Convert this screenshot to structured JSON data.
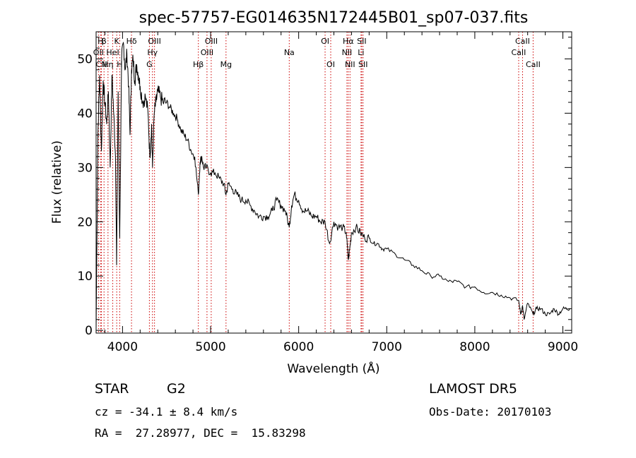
{
  "chart_data": {
    "type": "line",
    "title": "spec-57757-EG014635N172445B01_sp07-037.fits",
    "xlabel": "Wavelength (Å)",
    "ylabel": "Flux (relative)",
    "xlim": [
      3700,
      9100
    ],
    "ylim": [
      -0.5,
      55
    ],
    "xticks": [
      4000,
      5000,
      6000,
      7000,
      8000,
      9000
    ],
    "yticks": [
      0,
      10,
      20,
      30,
      40,
      50
    ],
    "grid": false,
    "legend": "none",
    "line_color": "#000000",
    "marker_color": "#cc0000",
    "series": [
      {
        "x": [
          3700,
          3720,
          3740,
          3760,
          3780,
          3800,
          3820,
          3840,
          3860,
          3880,
          3900,
          3920,
          3933,
          3950,
          3968,
          3990,
          4010,
          4030,
          4050,
          4070,
          4085,
          4102,
          4120,
          4140,
          4160,
          4180,
          4200,
          4230,
          4260,
          4290,
          4310,
          4330,
          4340,
          4360,
          4380,
          4400,
          4430,
          4460,
          4500,
          4540,
          4580,
          4620,
          4660,
          4700,
          4740,
          4780,
          4820,
          4861,
          4880,
          4900,
          4920,
          4950,
          5000,
          5050,
          5100,
          5150,
          5175,
          5200,
          5250,
          5300,
          5350,
          5400,
          5450,
          5500,
          5550,
          5600,
          5650,
          5700,
          5750,
          5800,
          5850,
          5893,
          5920,
          5950,
          6000,
          6050,
          6100,
          6150,
          6200,
          6250,
          6300,
          6350,
          6400,
          6450,
          6500,
          6540,
          6563,
          6580,
          6600,
          6650,
          6700,
          6750,
          6800,
          6850,
          6900,
          6950,
          7000,
          7100,
          7200,
          7300,
          7400,
          7500,
          7600,
          7700,
          7800,
          7900,
          8000,
          8100,
          8200,
          8300,
          8400,
          8498,
          8520,
          8542,
          8560,
          8600,
          8662,
          8700,
          8750,
          8800,
          8850,
          8900,
          8950,
          9000,
          9050,
          9080
        ],
        "y": [
          0,
          36,
          47,
          33,
          46,
          42,
          38,
          44,
          30,
          47,
          40,
          32,
          12,
          44,
          17,
          50,
          53,
          48,
          51,
          45,
          36,
          48,
          50,
          46,
          49,
          47,
          45,
          42,
          43,
          40,
          32,
          38,
          30,
          40,
          42,
          44,
          43,
          42,
          42,
          41,
          40,
          39,
          37,
          36,
          35,
          33,
          32,
          25,
          31,
          32,
          30,
          30,
          29,
          29,
          28,
          27,
          25,
          27,
          26,
          25,
          24,
          24,
          23,
          22,
          21,
          21,
          21,
          22,
          24,
          23,
          22,
          19,
          23,
          25,
          24,
          22,
          22,
          21,
          21,
          20,
          20,
          16,
          20,
          19,
          19,
          18,
          13,
          15,
          18,
          19,
          18,
          17,
          17,
          16,
          16,
          15,
          15,
          14,
          13,
          12,
          11,
          10,
          10,
          9,
          9,
          8,
          8,
          7,
          7,
          6.5,
          6,
          5.5,
          3,
          4.5,
          2,
          5,
          3,
          4,
          4,
          3,
          3,
          4,
          3,
          4,
          4,
          4
        ]
      }
    ],
    "lines": [
      {
        "label": "H",
        "x": 3750,
        "row": 1
      },
      {
        "label": "β",
        "x": 3790,
        "row": 1
      },
      {
        "label": "OII",
        "x": 3727,
        "row": 2
      },
      {
        "label": "CN",
        "x": 3760,
        "row": 3
      },
      {
        "label": "Hη",
        "x": 3835,
        "row": 3
      },
      {
        "label": "HeI",
        "x": 3889,
        "row": 2
      },
      {
        "label": "K",
        "x": 3934,
        "row": 1
      },
      {
        "label": "H",
        "x": 3968,
        "row": 3
      },
      {
        "label": "Hδ",
        "x": 4102,
        "row": 1
      },
      {
        "label": "OIII",
        "x": 4363,
        "row": 1
      },
      {
        "label": "Hγ",
        "x": 4340,
        "row": 2
      },
      {
        "label": "G",
        "x": 4305,
        "row": 3
      },
      {
        "label": "Hβ",
        "x": 4861,
        "row": 3
      },
      {
        "label": "OIII",
        "x": 5007,
        "row": 1
      },
      {
        "label": "OIII",
        "x": 4959,
        "row": 2
      },
      {
        "label": "Mg",
        "x": 5175,
        "row": 3
      },
      {
        "label": "Na",
        "x": 5893,
        "row": 2
      },
      {
        "label": "OI",
        "x": 6300,
        "row": 1
      },
      {
        "label": "OI",
        "x": 6364,
        "row": 3
      },
      {
        "label": "Hα",
        "x": 6563,
        "row": 1
      },
      {
        "label": "NII",
        "x": 6548,
        "row": 2
      },
      {
        "label": "NII",
        "x": 6583,
        "row": 3
      },
      {
        "label": "SII",
        "x": 6716,
        "row": 1
      },
      {
        "label": "Li",
        "x": 6708,
        "row": 2
      },
      {
        "label": "SII",
        "x": 6731,
        "row": 3
      },
      {
        "label": "CaII",
        "x": 8542,
        "row": 1
      },
      {
        "label": "CaII",
        "x": 8498,
        "row": 2
      },
      {
        "label": "CaII",
        "x": 8662,
        "row": 3
      }
    ]
  },
  "info": {
    "object_class": "STAR",
    "subclass": "G2",
    "survey": "LAMOST DR5",
    "redshift": "cz = -34.1 ± 8.4 km/s",
    "obs_date": "Obs-Date: 20170103",
    "coords": "RA =  27.28977, DEC =  15.83298"
  }
}
